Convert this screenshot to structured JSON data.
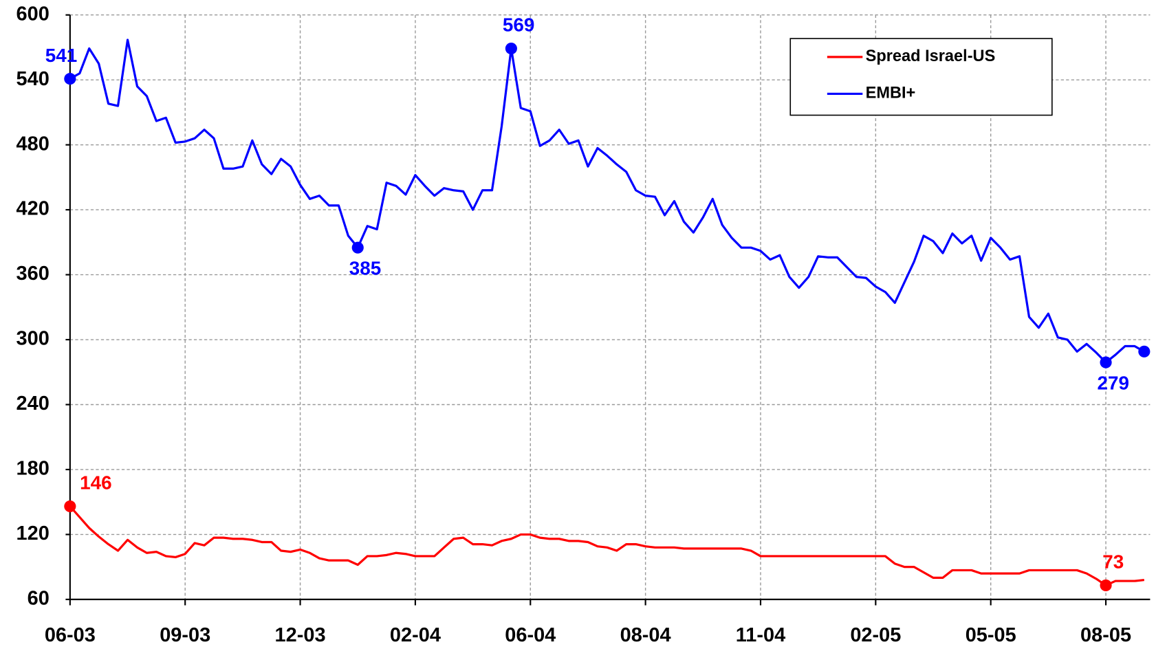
{
  "chart_data": {
    "type": "line",
    "categories": [
      "06-03",
      null,
      null,
      null,
      null,
      null,
      null,
      null,
      null,
      null,
      null,
      null,
      "09-03",
      null,
      null,
      null,
      null,
      null,
      null,
      null,
      null,
      null,
      null,
      null,
      "12-03",
      null,
      null,
      null,
      null,
      null,
      null,
      null,
      null,
      null,
      null,
      null,
      "02-04",
      null,
      null,
      null,
      null,
      null,
      null,
      null,
      null,
      null,
      null,
      null,
      "06-04",
      null,
      null,
      null,
      null,
      null,
      null,
      null,
      null,
      null,
      null,
      null,
      "08-04",
      null,
      null,
      null,
      null,
      null,
      null,
      null,
      null,
      null,
      null,
      null,
      "11-04",
      null,
      null,
      null,
      null,
      null,
      null,
      null,
      null,
      null,
      null,
      null,
      "02-05",
      null,
      null,
      null,
      null,
      null,
      null,
      null,
      null,
      null,
      null,
      null,
      "05-05",
      null,
      null,
      null,
      null,
      null,
      null,
      null,
      null,
      null,
      null,
      null,
      "08-05",
      null,
      null,
      null,
      null
    ],
    "series": [
      {
        "name": "Spread Israel-US",
        "color": "#ff0000",
        "markers": [
          0,
          108
        ],
        "labeled": [
          0,
          108
        ],
        "values": [
          146,
          136,
          126,
          118,
          111,
          105,
          115,
          108,
          103,
          104,
          100,
          99,
          102,
          112,
          110,
          117,
          117,
          116,
          116,
          115,
          113,
          113,
          105,
          104,
          106,
          103,
          98,
          96,
          96,
          96,
          92,
          100,
          100,
          101,
          103,
          102,
          100,
          100,
          100,
          108,
          116,
          117,
          111,
          111,
          110,
          114,
          116,
          120,
          120,
          117,
          116,
          116,
          114,
          114,
          113,
          109,
          108,
          105,
          111,
          111,
          109,
          108,
          108,
          108,
          107,
          107,
          107,
          107,
          107,
          107,
          107,
          105,
          100,
          100,
          100,
          100,
          100,
          100,
          100,
          100,
          100,
          100,
          100,
          100,
          100,
          100,
          93,
          90,
          90,
          85,
          80,
          80,
          87,
          87,
          87,
          84,
          84,
          84,
          84,
          84,
          87,
          87,
          87,
          87,
          87,
          87,
          84,
          79,
          73,
          77,
          77,
          77,
          78
        ]
      },
      {
        "name": "EMBI+",
        "color": "#0000ff",
        "markers": [
          0,
          30,
          46,
          108,
          112
        ],
        "labeled": [
          0,
          30,
          46,
          108
        ],
        "values": [
          541,
          546,
          569,
          555,
          518,
          516,
          577,
          534,
          525,
          502,
          505,
          482,
          483,
          486,
          494,
          486,
          458,
          458,
          460,
          484,
          462,
          453,
          467,
          460,
          443,
          430,
          433,
          424,
          424,
          396,
          385,
          405,
          402,
          445,
          442,
          434,
          452,
          442,
          433,
          440,
          438,
          437,
          420,
          438,
          438,
          497,
          569,
          514,
          511,
          479,
          484,
          494,
          481,
          484,
          460,
          477,
          470,
          462,
          455,
          438,
          433,
          432,
          415,
          428,
          409,
          399,
          413,
          430,
          406,
          394,
          385,
          385,
          382,
          374,
          378,
          358,
          348,
          358,
          377,
          376,
          376,
          367,
          358,
          357,
          349,
          344,
          334,
          353,
          372,
          396,
          391,
          380,
          398,
          389,
          396,
          373,
          394,
          385,
          374,
          377,
          321,
          311,
          324,
          302,
          300,
          289,
          296,
          288,
          279,
          286,
          294,
          294,
          289
        ]
      }
    ],
    "ylim": [
      60,
      600
    ],
    "yticks": [
      60,
      120,
      180,
      240,
      300,
      360,
      420,
      480,
      540,
      600
    ],
    "grid": true,
    "legend": "upper right"
  }
}
